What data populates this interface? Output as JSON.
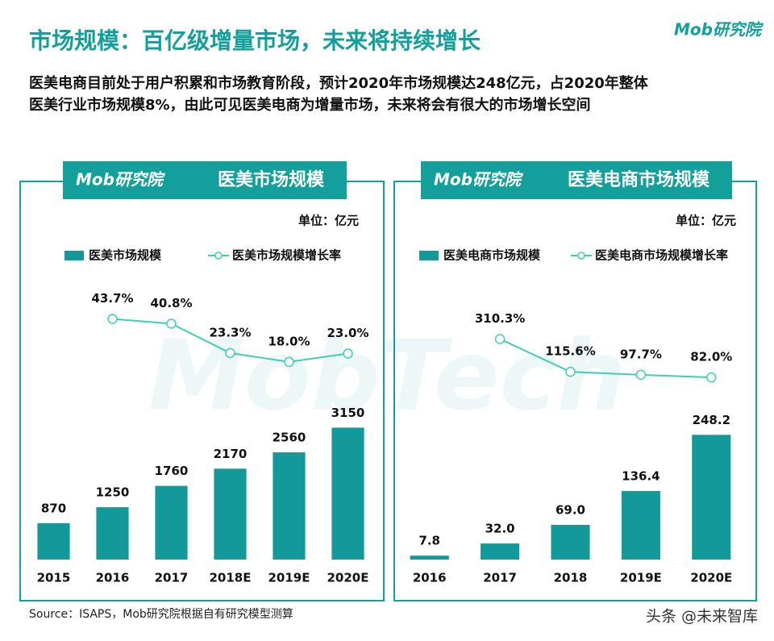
{
  "header": {
    "title": "市场规模：百亿级增量市场，未来将持续增长",
    "subtitle": [
      "医美电商目前处于用户积累和市场教育阶段，预计2020年市场规模达248亿元，占2020年整体",
      "医美行业市场规模8%，由此可见医美电商为增量市场，未来将会有很大的市场增长空间"
    ],
    "logo": "Mob研究院"
  },
  "watermark": "MobTech",
  "footer": {
    "source": "Source：ISAPS，Mob研究院根据自有研究模型测算",
    "credit": "头条 @未来智库"
  },
  "chart_data": [
    {
      "type": "bar",
      "logo": "Mob研究院",
      "title": "医美市场规模",
      "unit": "单位：亿元",
      "categories": [
        "2015",
        "2016",
        "2017",
        "2018E",
        "2019E",
        "2020E"
      ],
      "series": [
        {
          "name": "医美市场规模",
          "color": "#13999a",
          "values": [
            870,
            1250,
            1760,
            2170,
            2560,
            3150
          ]
        },
        {
          "name": "医美市场规模增长率",
          "type": "line",
          "axis": "y2",
          "color": "#3ccfb2",
          "values": [
            null,
            43.7,
            40.8,
            23.3,
            18.0,
            23.0
          ],
          "value_labels": [
            null,
            "43.7%",
            "40.8%",
            "23.3%",
            "18.0%",
            "23.0%"
          ]
        }
      ],
      "ylim": [
        0,
        6720
      ],
      "y2lim": [
        -100,
        68
      ]
    },
    {
      "type": "bar",
      "logo": "Mob研究院",
      "title": "医美电商市场规模",
      "unit": "单位：亿元",
      "categories": [
        "2016",
        "2017",
        "2018",
        "2019E",
        "2020E"
      ],
      "series": [
        {
          "name": "医美电商市场规模",
          "color": "#13999a",
          "values": [
            7.8,
            32.0,
            69.0,
            136.4,
            248.2
          ],
          "value_labels": [
            "7.8",
            "32.0",
            "69.0",
            "136.4",
            "248.2"
          ]
        },
        {
          "name": "医美电商市场规模增长率",
          "type": "line",
          "axis": "y2",
          "color": "#3ccfb2",
          "values": [
            null,
            310.3,
            115.6,
            97.7,
            82.0
          ],
          "value_labels": [
            null,
            "310.3%",
            "115.6%",
            "97.7%",
            "82.0%"
          ]
        }
      ],
      "ylim": [
        0,
        560
      ],
      "y2lim": [
        -1000,
        672
      ]
    }
  ]
}
